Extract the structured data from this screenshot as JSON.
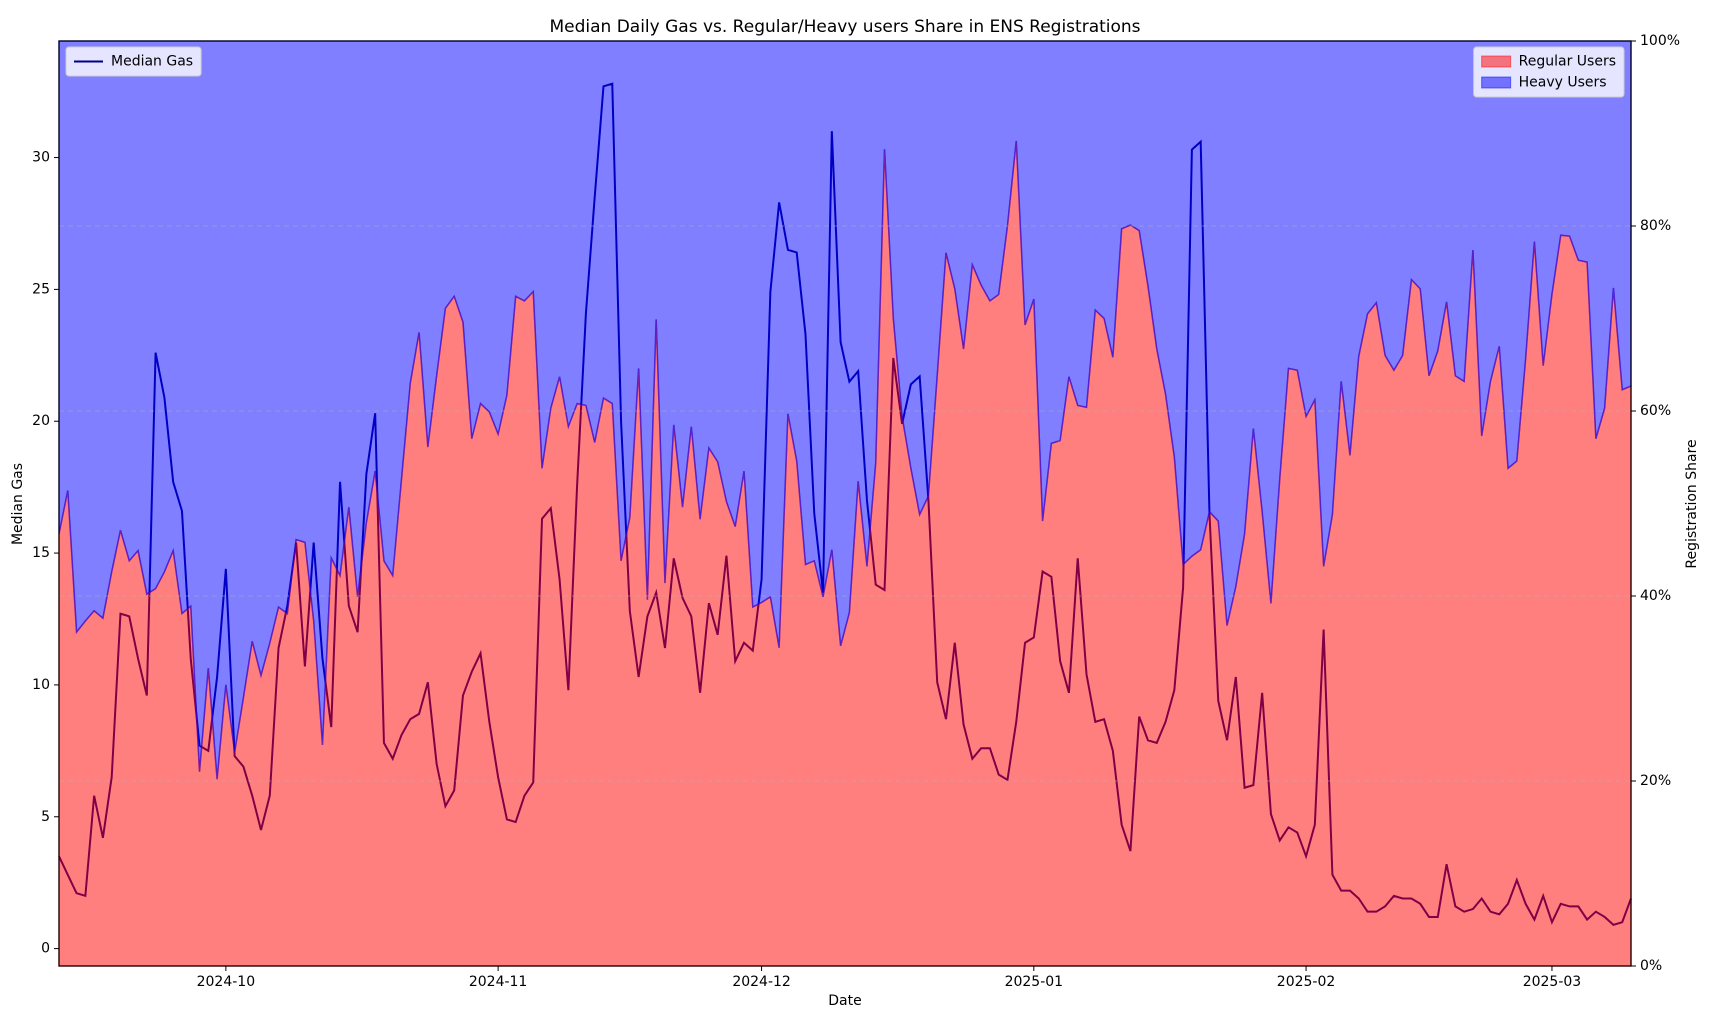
{
  "chart_data": {
    "type": "line",
    "title": "Median Daily Gas vs. Regular/Heavy users Share in ENS Registrations",
    "xlabel": "Date",
    "ylabel": "Median Gas",
    "y2label": "Registration Share",
    "xlim": [
      0,
      179
    ],
    "xticks": [
      {
        "value": 19,
        "label": "2024-10"
      },
      {
        "value": 50,
        "label": "2024-11"
      },
      {
        "value": 80,
        "label": "2024-12"
      },
      {
        "value": 111,
        "label": "2025-01"
      },
      {
        "value": 142,
        "label": "2025-02"
      },
      {
        "value": 170,
        "label": "2025-03"
      }
    ],
    "ylim": [
      -0.66,
      34.42
    ],
    "yticks": [
      0,
      5,
      10,
      15,
      20,
      25,
      30
    ],
    "y2lim": [
      0,
      100
    ],
    "y2ticks": [
      {
        "value": 0,
        "label": "0%"
      },
      {
        "value": 20,
        "label": "20%"
      },
      {
        "value": 40,
        "label": "40%"
      },
      {
        "value": 60,
        "label": "60%"
      },
      {
        "value": 80,
        "label": "80%"
      },
      {
        "value": 100,
        "label": "100%"
      }
    ],
    "grid": true,
    "legend": "upper left",
    "y2legend": "upper right",
    "series": [
      {
        "name": "Median Gas",
        "type": "line",
        "color": "#00008b",
        "values": [
          3.5,
          2.8,
          2.1,
          2.0,
          5.8,
          4.2,
          6.5,
          12.7,
          12.6,
          11.0,
          9.6,
          22.6,
          20.9,
          17.7,
          16.6,
          11.0,
          7.7,
          7.5,
          10.3,
          14.4,
          7.3,
          6.9,
          5.8,
          4.5,
          5.8,
          11.4,
          13.0,
          15.4,
          10.7,
          15.4,
          11.0,
          8.4,
          17.7,
          13.0,
          12.0,
          18.0,
          20.3,
          7.8,
          7.2,
          8.1,
          8.7,
          8.9,
          10.1,
          7.0,
          5.4,
          6.0,
          9.6,
          10.5,
          11.2,
          8.6,
          6.5,
          4.9,
          4.8,
          5.8,
          6.3,
          16.3,
          16.7,
          14.0,
          9.8,
          17.6,
          24.1,
          28.5,
          32.7,
          32.8,
          20.0,
          12.8,
          10.3,
          12.6,
          13.5,
          11.4,
          14.8,
          13.3,
          12.6,
          9.7,
          13.1,
          11.9,
          14.9,
          10.9,
          11.6,
          11.3,
          14.0,
          24.9,
          28.3,
          26.5,
          26.4,
          23.3,
          16.5,
          13.5,
          31.0,
          23.0,
          21.5,
          21.9,
          17.0,
          13.8,
          13.6,
          22.4,
          19.9,
          21.4,
          21.7,
          17.0,
          10.1,
          8.7,
          11.6,
          8.5,
          7.2,
          7.6,
          7.6,
          6.6,
          6.4,
          8.6,
          11.6,
          11.8,
          14.3,
          14.1,
          10.9,
          9.7,
          14.8,
          10.4,
          8.6,
          8.7,
          7.5,
          4.7,
          3.7,
          8.8,
          7.9,
          7.8,
          8.6,
          9.8,
          13.7,
          30.3,
          30.6,
          16.5,
          9.4,
          7.9,
          10.3,
          6.1,
          6.2,
          9.7,
          5.1,
          4.1,
          4.6,
          4.4,
          3.5,
          4.7,
          12.1,
          2.8,
          2.2,
          2.2,
          1.9,
          1.4,
          1.4,
          1.6,
          2.0,
          1.9,
          1.9,
          1.7,
          1.2,
          1.2,
          3.2,
          1.6,
          1.4,
          1.5,
          1.9,
          1.4,
          1.3,
          1.7,
          2.6,
          1.7,
          1.1,
          2.0,
          1.0,
          1.7,
          1.6,
          1.6,
          1.1,
          1.4,
          1.2,
          0.9,
          1.0,
          1.9
        ]
      },
      {
        "name": "Regular Users",
        "type": "area",
        "stacked": true,
        "axis": "y2",
        "color": "#ff0000",
        "opacity": 0.5,
        "values": [
          46.7,
          51.4,
          36.1,
          37.3,
          38.4,
          37.6,
          42.6,
          47.1,
          43.8,
          44.9,
          40.2,
          40.8,
          42.6,
          44.9,
          38.1,
          38.9,
          21.0,
          32.2,
          20.2,
          30.4,
          23.1,
          29.0,
          35.1,
          31.4,
          34.9,
          38.8,
          38.1,
          46.1,
          45.8,
          37.3,
          23.9,
          44.1,
          42.2,
          49.6,
          39.9,
          47.9,
          53.5,
          43.8,
          42.2,
          52.6,
          63.0,
          68.5,
          56.1,
          63.8,
          71.1,
          72.4,
          69.6,
          57.0,
          60.8,
          59.9,
          57.5,
          61.7,
          72.4,
          71.9,
          72.9,
          53.8,
          60.3,
          63.7,
          58.3,
          60.8,
          60.6,
          56.6,
          61.4,
          60.8,
          43.8,
          48.5,
          64.6,
          39.6,
          69.9,
          41.4,
          58.5,
          49.6,
          58.3,
          48.3,
          56.0,
          54.5,
          50.2,
          47.5,
          53.5,
          38.8,
          39.3,
          39.9,
          34.4,
          59.7,
          54.6,
          43.4,
          43.8,
          39.9,
          45.0,
          34.6,
          38.2,
          52.4,
          43.2,
          54.4,
          88.3,
          70.0,
          59.4,
          53.8,
          48.8,
          50.8,
          63.8,
          77.1,
          73.2,
          66.7,
          75.8,
          73.6,
          71.9,
          72.6,
          80.0,
          89.2,
          69.3,
          72.1,
          48.1,
          56.5,
          56.8,
          63.7,
          60.6,
          60.4,
          70.9,
          70.0,
          65.8,
          79.7,
          80.1,
          79.5,
          73.5,
          66.7,
          61.8,
          55.0,
          43.4,
          44.3,
          45.0,
          49.1,
          48.1,
          36.8,
          41.0,
          46.7,
          58.1,
          49.1,
          39.2,
          52.6,
          64.6,
          64.4,
          59.4,
          61.2,
          43.2,
          48.8,
          63.2,
          55.2,
          65.9,
          70.5,
          71.7,
          66.0,
          64.4,
          66.0,
          74.2,
          73.2,
          63.8,
          66.5,
          71.8,
          63.8,
          63.2,
          77.4,
          57.3,
          63.2,
          67.0,
          53.8,
          54.6,
          65.6,
          78.3,
          64.9,
          72.6,
          79.0,
          78.9,
          76.3,
          76.1,
          57.0,
          60.3,
          73.3,
          62.3,
          62.7
        ]
      },
      {
        "name": "Heavy Users",
        "type": "area",
        "stacked": true,
        "axis": "y2",
        "color": "#0000ff",
        "opacity": 0.5,
        "values": [
          53.3,
          48.6,
          63.9,
          62.7,
          61.6,
          62.4,
          57.4,
          52.9,
          56.2,
          55.1,
          59.8,
          59.2,
          57.4,
          55.1,
          61.9,
          61.1,
          79.0,
          67.8,
          79.8,
          69.6,
          76.9,
          71.0,
          64.9,
          68.6,
          65.1,
          61.2,
          61.9,
          53.9,
          54.2,
          62.7,
          76.1,
          55.9,
          57.8,
          50.4,
          60.1,
          52.1,
          46.5,
          56.2,
          57.8,
          47.4,
          37.0,
          31.5,
          43.9,
          36.2,
          28.9,
          27.6,
          30.4,
          43.0,
          39.2,
          40.1,
          42.5,
          38.3,
          27.6,
          28.1,
          27.1,
          46.2,
          39.7,
          36.3,
          41.7,
          39.2,
          39.4,
          43.4,
          38.6,
          39.2,
          56.2,
          51.5,
          35.4,
          60.4,
          30.1,
          58.6,
          41.5,
          50.4,
          41.7,
          51.7,
          44.0,
          45.5,
          49.8,
          52.5,
          46.5,
          61.2,
          60.7,
          60.1,
          65.6,
          40.3,
          45.4,
          56.6,
          56.2,
          60.1,
          55.0,
          65.4,
          61.8,
          47.6,
          56.8,
          45.6,
          11.7,
          30.0,
          40.6,
          46.2,
          51.2,
          49.2,
          36.2,
          22.9,
          26.8,
          33.3,
          24.2,
          26.4,
          28.1,
          27.4,
          20.0,
          10.8,
          30.7,
          27.9,
          51.9,
          43.5,
          43.2,
          36.3,
          39.4,
          39.6,
          29.1,
          30.0,
          34.2,
          20.3,
          19.9,
          20.5,
          26.5,
          33.3,
          38.2,
          45.0,
          56.6,
          55.7,
          55.0,
          50.9,
          51.9,
          63.2,
          59.0,
          53.3,
          41.9,
          50.9,
          60.8,
          47.4,
          35.4,
          35.6,
          40.6,
          38.8,
          56.8,
          51.2,
          36.8,
          44.8,
          34.1,
          29.5,
          28.3,
          34.0,
          35.6,
          34.0,
          25.8,
          26.8,
          36.2,
          33.5,
          28.2,
          36.2,
          36.8,
          22.6,
          42.7,
          36.8,
          33.0,
          46.2,
          45.4,
          34.4,
          21.7,
          35.1,
          27.4,
          21.0,
          21.1,
          23.7,
          23.9,
          43.0,
          39.7,
          26.7,
          37.7,
          37.3
        ]
      }
    ]
  }
}
